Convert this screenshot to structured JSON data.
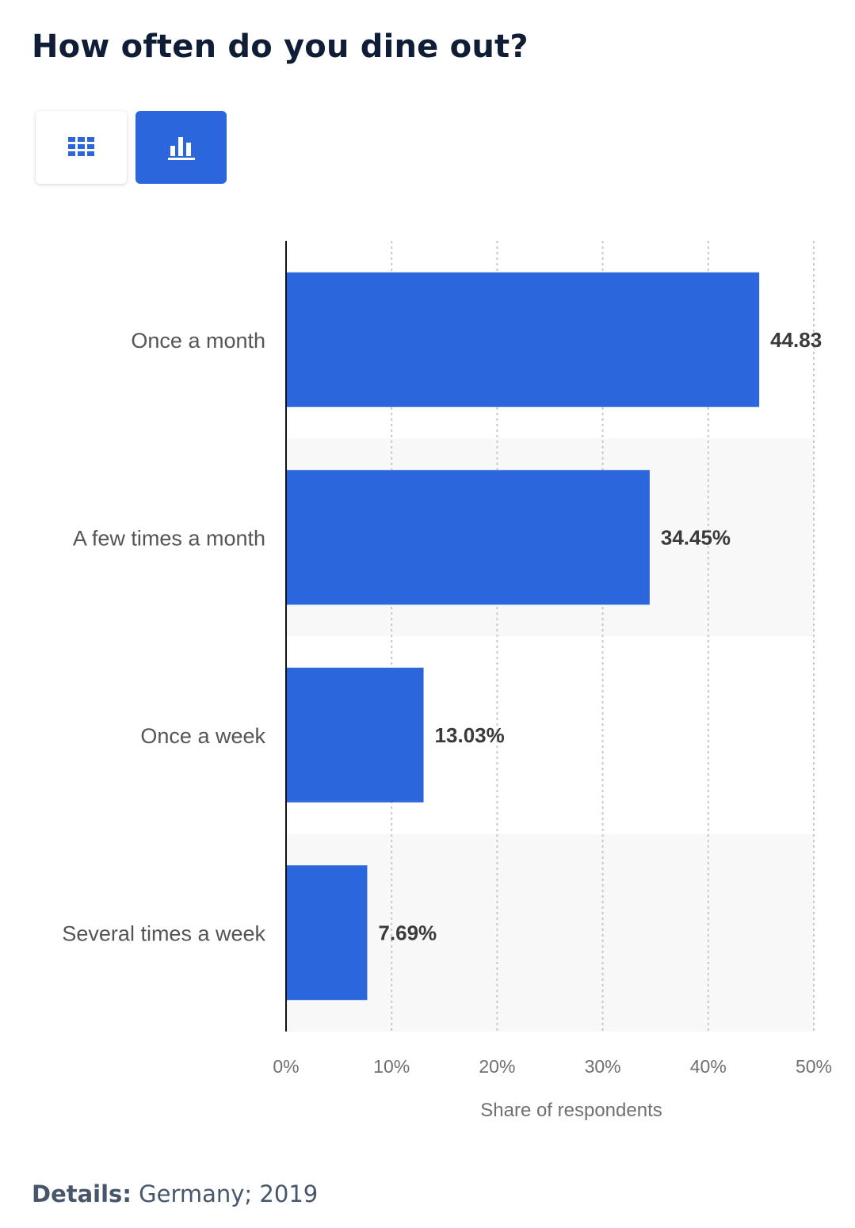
{
  "title": "How often do you dine out?",
  "view_toggle": {
    "table_icon": "grid-table-icon",
    "chart_icon": "bar-chart-icon",
    "active": "chart",
    "active_color": "#2c66dc"
  },
  "chart_data": {
    "type": "bar",
    "orientation": "horizontal",
    "categories": [
      "Once a month",
      "A few times a month",
      "Once a week",
      "Several times a week"
    ],
    "values": [
      44.83,
      34.45,
      13.03,
      7.69
    ],
    "value_labels": [
      "44.83",
      "34.45%",
      "13.03%",
      "7.69%"
    ],
    "xlabel": "Share of respondents",
    "xlim": [
      0,
      50
    ],
    "xticks": [
      0,
      10,
      20,
      30,
      40,
      50
    ],
    "xtick_labels": [
      "0%",
      "10%",
      "20%",
      "30%",
      "40%",
      "50%"
    ],
    "grid": true,
    "bar_color": "#2c66dc",
    "band_color": "#f8f8f8"
  },
  "footer": {
    "details_label": "Details:",
    "details_text": "Germany; 2019"
  }
}
